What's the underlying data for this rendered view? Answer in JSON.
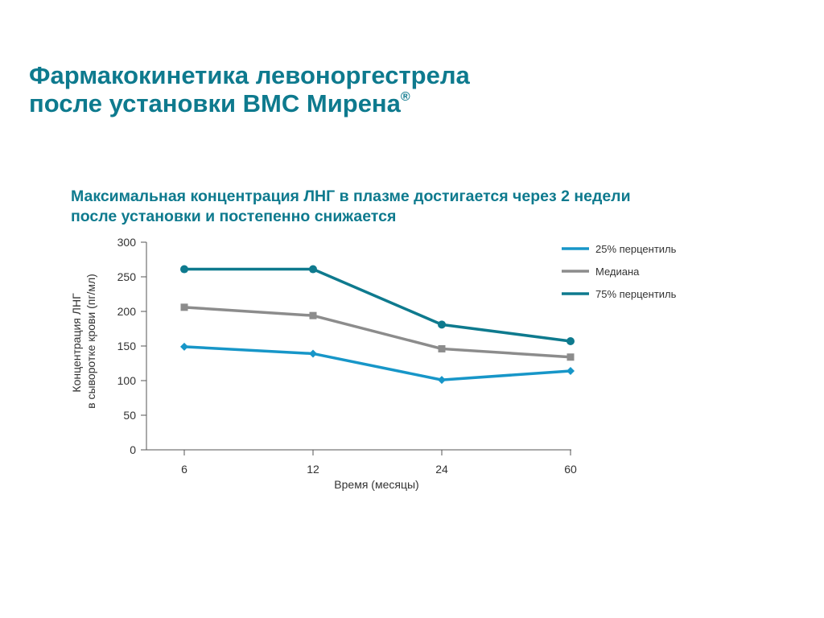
{
  "page": {
    "title_line1": "Фармакокинетика левоноргестрела",
    "title_line2": "после установки ВМС Мирена",
    "title_mark": "®",
    "subtitle_line1": "Максимальная концентрация ЛНГ в плазме достигается через 2 недели",
    "subtitle_line2": "после установки и постепенно снижается"
  },
  "chart_data": {
    "type": "line",
    "categories": [
      "6",
      "12",
      "24",
      "60"
    ],
    "xlabel": "Время (месяцы)",
    "ylabel_line1": "Концентрация ЛНГ",
    "ylabel_line2": "в сыворотке крови (пг/мл)",
    "ylim": [
      0,
      300
    ],
    "yticks": [
      0,
      50,
      100,
      150,
      200,
      250,
      300
    ],
    "grid": false,
    "legend_position": "top-right",
    "series": [
      {
        "name": "25% перцентиль",
        "values": [
          149,
          139,
          101,
          114
        ],
        "color": "#1796c8",
        "marker": "diamond"
      },
      {
        "name": "Медиана",
        "values": [
          206,
          194,
          146,
          134
        ],
        "color": "#8c8c8c",
        "marker": "square"
      },
      {
        "name": "75% перцентиль",
        "values": [
          261,
          261,
          181,
          157
        ],
        "color": "#0e7a8e",
        "marker": "circle"
      }
    ]
  }
}
